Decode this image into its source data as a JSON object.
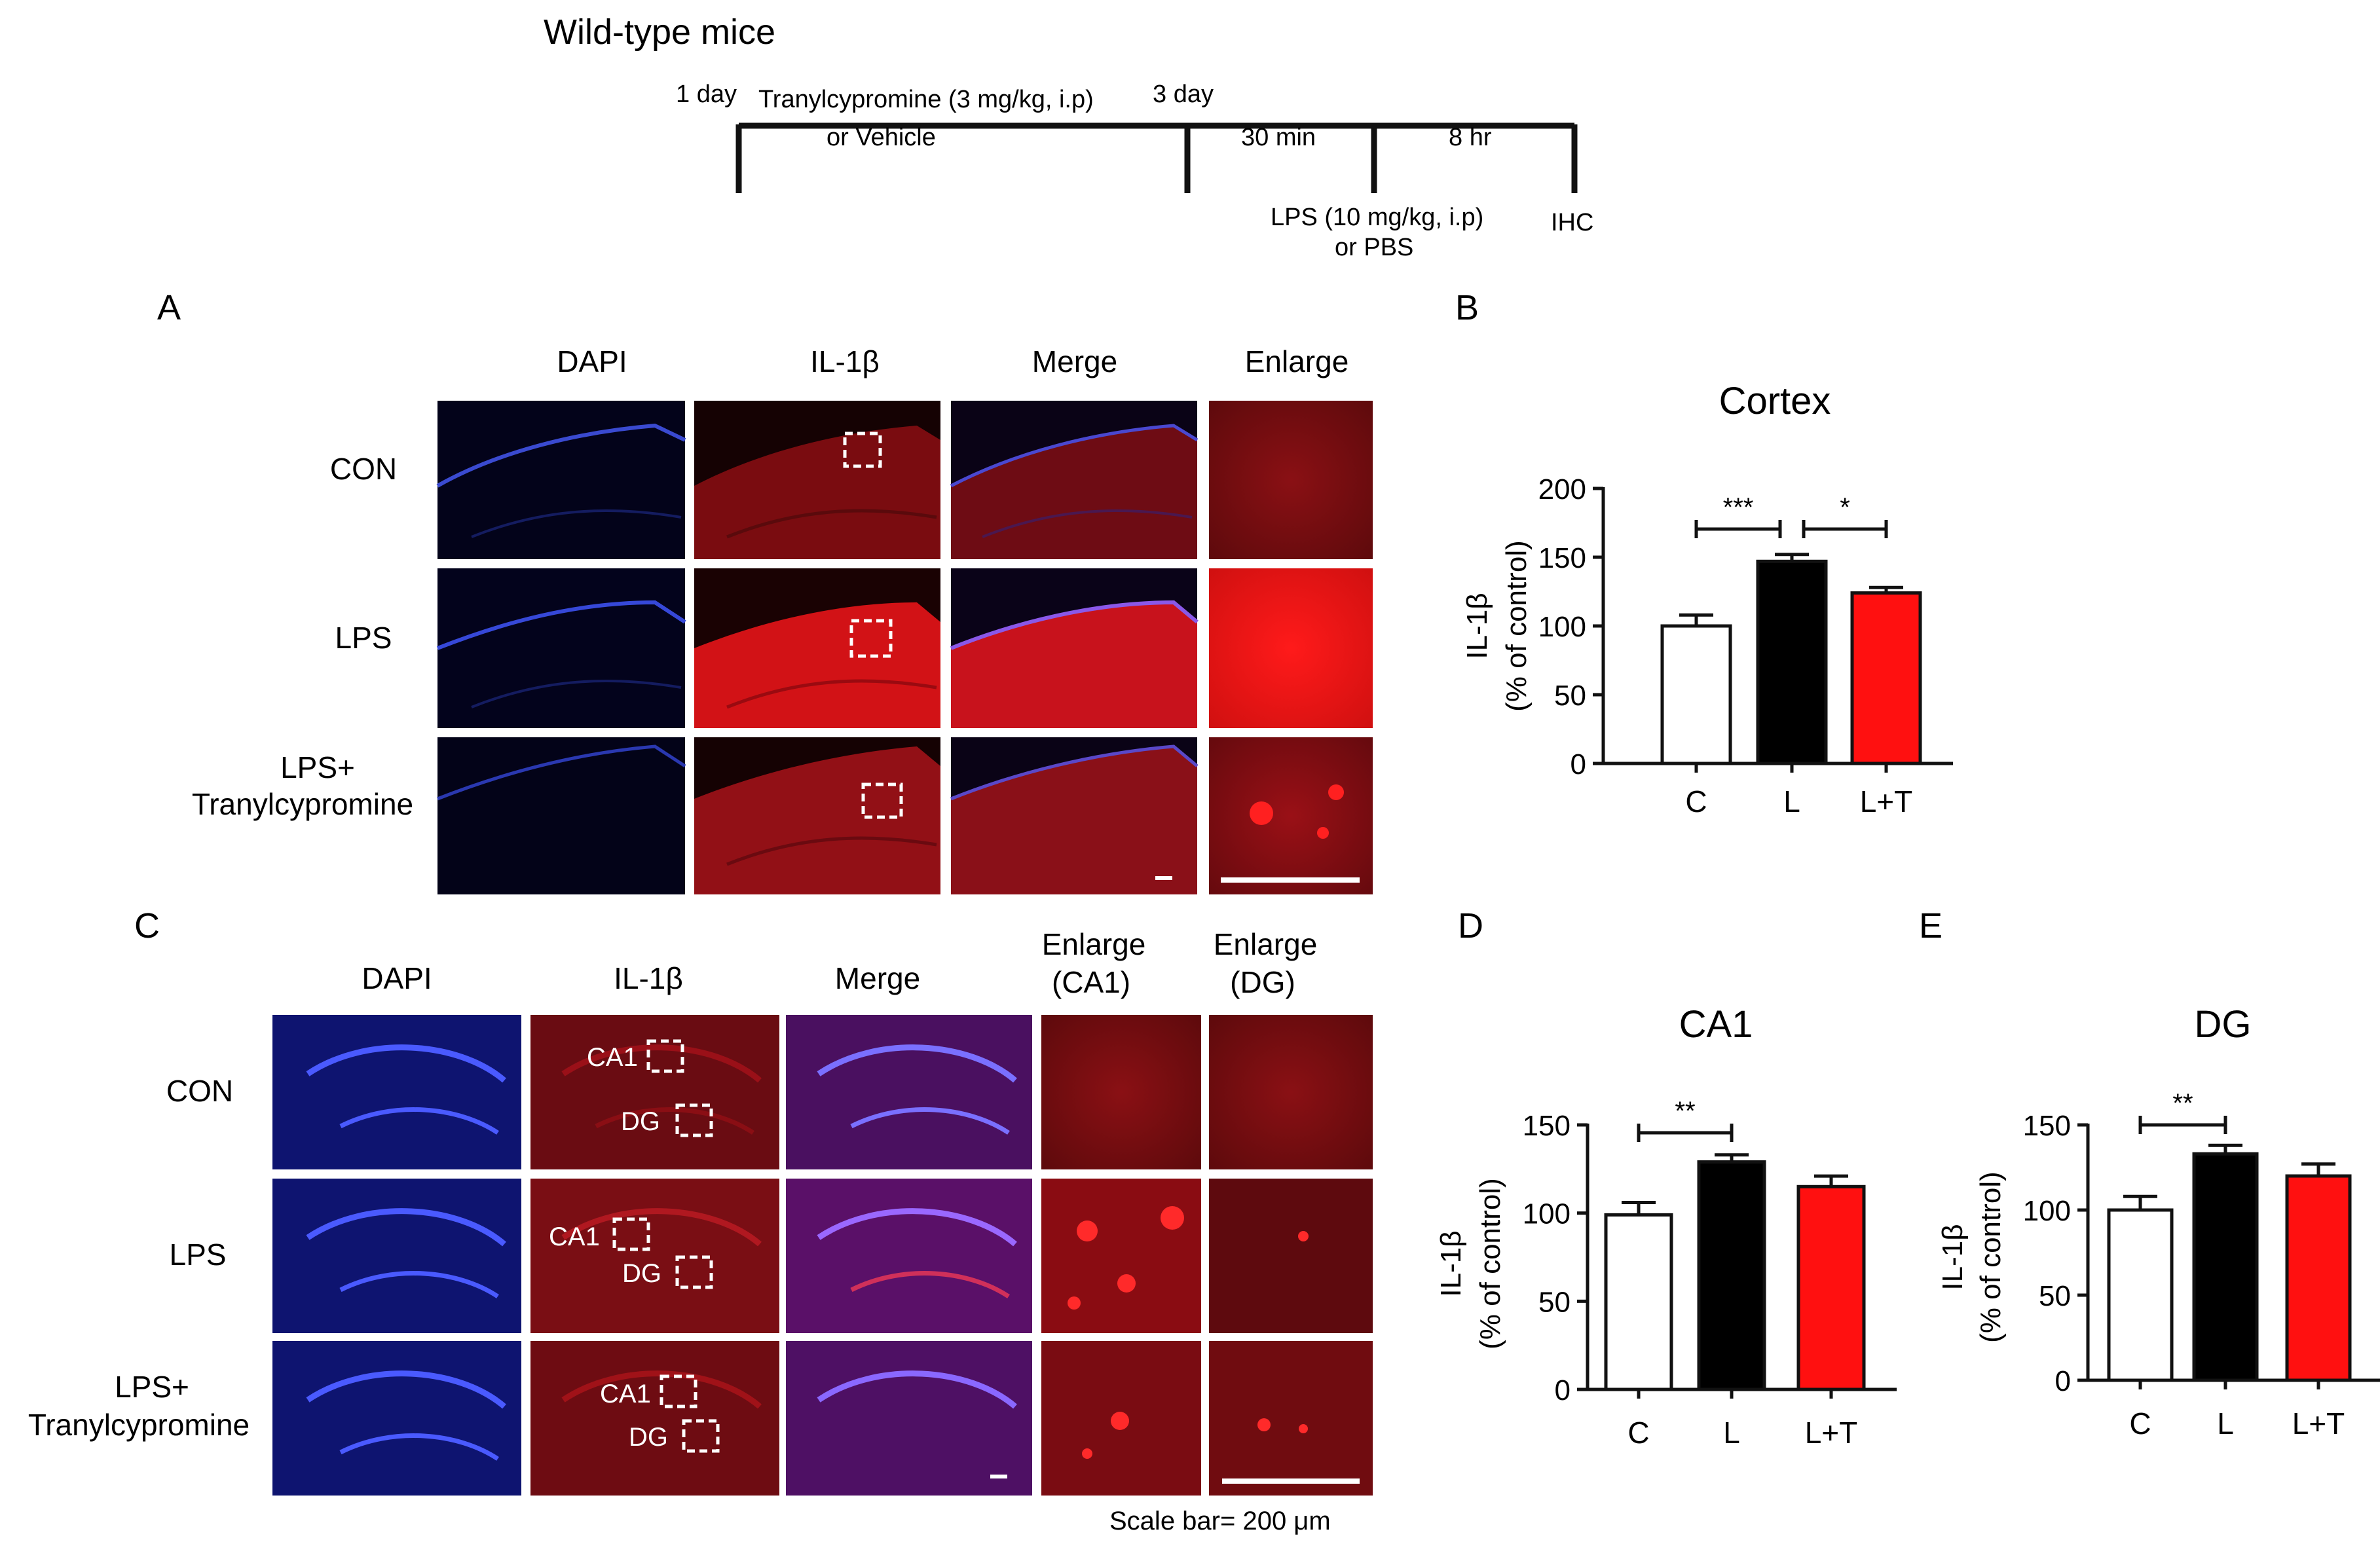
{
  "timeline": {
    "title": "Wild-type mice",
    "day1": "1 day",
    "drug_line1": "Tranylcypromine (3 mg/kg, i.p)",
    "drug_line2": "or Vehicle",
    "day3": "3 day",
    "interval1": "30 min",
    "interval2": "8 hr",
    "lps_line1": "LPS (10 mg/kg, i.p)",
    "lps_line2": "or PBS",
    "ihc": "IHC"
  },
  "panel_a": {
    "letter": "A",
    "columns": [
      "DAPI",
      "IL-1β",
      "Merge",
      "Enlarge"
    ],
    "rows": [
      {
        "label_line1": "CON",
        "label_line2": ""
      },
      {
        "label_line1": "LPS",
        "label_line2": ""
      },
      {
        "label_line1": "LPS+",
        "label_line2": "Tranylcypromine"
      }
    ]
  },
  "panel_c": {
    "letter": "C",
    "columns": [
      {
        "line1": "DAPI",
        "line2": ""
      },
      {
        "line1": "IL-1β",
        "line2": ""
      },
      {
        "line1": "Merge",
        "line2": ""
      },
      {
        "line1": "Enlarge",
        "line2": "(CA1)"
      },
      {
        "line1": "Enlarge",
        "line2": "(DG)"
      }
    ],
    "rows": [
      {
        "label_line1": "CON",
        "label_line2": ""
      },
      {
        "label_line1": "LPS",
        "label_line2": ""
      },
      {
        "label_line1": "LPS+",
        "label_line2": "Tranylcypromine"
      }
    ],
    "roi_labels": [
      "CA1",
      "DG"
    ],
    "scale_bar_text": "Scale bar= 200 μm"
  },
  "colors": {
    "dapi": "#1a2aa8",
    "il1b": "#c8141c",
    "enlarge": "#8a0f14",
    "bar_c": "#ffffff",
    "bar_l": "#000000",
    "bar_lt": "#ff1010"
  },
  "chart_data": [
    {
      "letter": "B",
      "type": "bar",
      "title": "Cortex",
      "ylabel_line1": "IL-1β",
      "ylabel_line2": "(% of control)",
      "categories": [
        "C",
        "L",
        "L+T"
      ],
      "values": [
        100,
        147,
        124
      ],
      "errors": [
        8,
        5,
        4
      ],
      "ylim": [
        0,
        200
      ],
      "yticks": [
        "0",
        "50",
        "100",
        "150",
        "200"
      ],
      "significance": [
        {
          "from": 0,
          "to": 1,
          "label": "***"
        },
        {
          "from": 1,
          "to": 2,
          "label": "*"
        }
      ]
    },
    {
      "letter": "D",
      "type": "bar",
      "title": "CA1",
      "ylabel_line1": "IL-1β",
      "ylabel_line2": "(% of control)",
      "categories": [
        "C",
        "L",
        "L+T"
      ],
      "values": [
        99,
        129,
        115
      ],
      "errors": [
        7,
        4,
        6
      ],
      "ylim": [
        0,
        150
      ],
      "yticks": [
        "0",
        "50",
        "100",
        "150"
      ],
      "significance": [
        {
          "from": 0,
          "to": 1,
          "label": "**"
        }
      ]
    },
    {
      "letter": "E",
      "type": "bar",
      "title": "DG",
      "ylabel_line1": "IL-1β",
      "ylabel_line2": "(% of control)",
      "categories": [
        "C",
        "L",
        "L+T"
      ],
      "values": [
        100,
        133,
        120
      ],
      "errors": [
        8,
        5,
        7
      ],
      "ylim": [
        0,
        150
      ],
      "yticks": [
        "0",
        "50",
        "100",
        "150"
      ],
      "significance": [
        {
          "from": 0,
          "to": 1,
          "label": "**"
        }
      ]
    }
  ]
}
